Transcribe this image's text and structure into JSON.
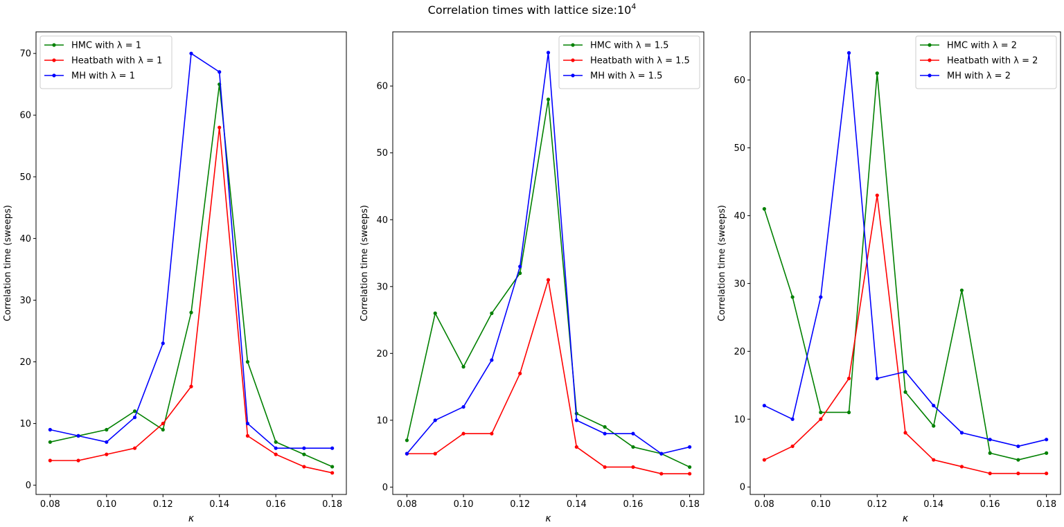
{
  "suptitle": {
    "text": "Correlation times with lattice size:10",
    "superscript": "4"
  },
  "chart_data": [
    {
      "type": "line",
      "xlabel": "κ",
      "ylabel": "Correlation time (sweeps)",
      "x": [
        0.08,
        0.09,
        0.1,
        0.11,
        0.12,
        0.13,
        0.14,
        0.15,
        0.16,
        0.17,
        0.18
      ],
      "xlim": [
        0.075,
        0.185
      ],
      "ylim": [
        -1.5,
        73.5
      ],
      "xticks": [
        "0.08",
        "0.10",
        "0.12",
        "0.14",
        "0.16",
        "0.18"
      ],
      "yticks": [
        "0",
        "10",
        "20",
        "30",
        "40",
        "50",
        "60",
        "70"
      ],
      "legend_position": "top-left",
      "series": [
        {
          "name": "HMC with λ = 1",
          "color": "#008000",
          "values": [
            7,
            8,
            9,
            12,
            9,
            28,
            65,
            20,
            7,
            5,
            3
          ]
        },
        {
          "name": "Heatbath with λ = 1",
          "color": "#ff0000",
          "values": [
            4,
            4,
            5,
            6,
            10,
            16,
            58,
            8,
            5,
            3,
            2
          ]
        },
        {
          "name": "MH with λ = 1",
          "color": "#0000ff",
          "values": [
            9,
            8,
            7,
            11,
            23,
            70,
            67,
            10,
            6,
            6,
            6
          ]
        }
      ]
    },
    {
      "type": "line",
      "xlabel": "κ",
      "ylabel": "Correlation time (sweeps)",
      "x": [
        0.08,
        0.09,
        0.1,
        0.11,
        0.12,
        0.13,
        0.14,
        0.15,
        0.16,
        0.17,
        0.18
      ],
      "xlim": [
        0.075,
        0.185
      ],
      "ylim": [
        -1.1,
        68.1
      ],
      "xticks": [
        "0.08",
        "0.10",
        "0.12",
        "0.14",
        "0.16",
        "0.18"
      ],
      "yticks": [
        "0",
        "10",
        "20",
        "30",
        "40",
        "50",
        "60"
      ],
      "legend_position": "top-right",
      "series": [
        {
          "name": "HMC with λ = 1.5",
          "color": "#008000",
          "values": [
            7,
            26,
            18,
            26,
            32,
            58,
            11,
            9,
            6,
            5,
            3
          ]
        },
        {
          "name": "Heatbath with λ = 1.5",
          "color": "#ff0000",
          "values": [
            5,
            5,
            8,
            8,
            17,
            31,
            6,
            3,
            3,
            2,
            2
          ]
        },
        {
          "name": "MH with λ = 1.5",
          "color": "#0000ff",
          "values": [
            5,
            10,
            12,
            19,
            33,
            65,
            10,
            8,
            8,
            5,
            6
          ]
        }
      ]
    },
    {
      "type": "line",
      "xlabel": "κ",
      "ylabel": "Correlation time (sweeps)",
      "x": [
        0.08,
        0.09,
        0.1,
        0.11,
        0.12,
        0.13,
        0.14,
        0.15,
        0.16,
        0.17,
        0.18
      ],
      "xlim": [
        0.075,
        0.185
      ],
      "ylim": [
        -1.1,
        67.1
      ],
      "xticks": [
        "0.08",
        "0.10",
        "0.12",
        "0.14",
        "0.16",
        "0.18"
      ],
      "yticks": [
        "0",
        "10",
        "20",
        "30",
        "40",
        "50",
        "60"
      ],
      "legend_position": "top-right",
      "series": [
        {
          "name": "HMC with λ = 2",
          "color": "#008000",
          "values": [
            41,
            28,
            11,
            11,
            61,
            14,
            9,
            29,
            5,
            4,
            5
          ]
        },
        {
          "name": "Heatbath with λ = 2",
          "color": "#ff0000",
          "values": [
            4,
            6,
            10,
            16,
            43,
            8,
            4,
            3,
            2,
            2,
            2
          ]
        },
        {
          "name": "MH with λ = 2",
          "color": "#0000ff",
          "values": [
            12,
            10,
            28,
            64,
            16,
            17,
            12,
            8,
            7,
            6,
            7
          ]
        }
      ]
    }
  ]
}
